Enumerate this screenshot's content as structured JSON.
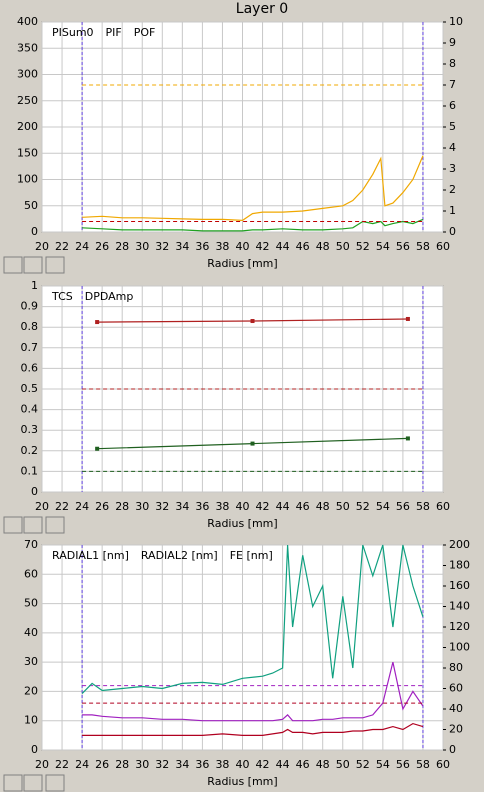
{
  "title": "Layer 0",
  "chart_data": [
    {
      "type": "line",
      "xlabel": "Radius [mm]",
      "xlim": [
        20,
        60
      ],
      "xticks": [
        20,
        22,
        24,
        26,
        28,
        30,
        32,
        34,
        36,
        38,
        40,
        42,
        44,
        46,
        48,
        50,
        52,
        54,
        56,
        58,
        60
      ],
      "ylim": [
        0,
        400
      ],
      "yticks": [
        0,
        50,
        100,
        150,
        200,
        250,
        300,
        350,
        400
      ],
      "y2lim": [
        0,
        10
      ],
      "y2ticks": [
        0,
        1,
        2,
        3,
        4,
        5,
        6,
        7,
        8,
        9,
        10
      ],
      "vlines": [
        24,
        58
      ],
      "grid": true,
      "x": [
        24,
        26,
        28,
        30,
        32,
        34,
        36,
        38,
        40,
        41,
        42,
        44,
        46,
        48,
        50,
        51,
        52,
        53,
        53.8,
        54.2,
        55,
        56,
        57,
        58
      ],
      "series": [
        {
          "name": "PISum0",
          "color": "#f0a800",
          "limit": 280,
          "values": [
            28,
            30,
            27,
            27,
            26,
            25,
            24,
            24,
            22,
            35,
            38,
            38,
            40,
            45,
            50,
            60,
            80,
            110,
            140,
            50,
            55,
            75,
            100,
            145
          ]
        },
        {
          "name": "PIF",
          "color": "#20a020",
          "axis": "y2",
          "values": [
            0.2,
            0.15,
            0.1,
            0.1,
            0.1,
            0.1,
            0.05,
            0.05,
            0.05,
            0.1,
            0.1,
            0.15,
            0.1,
            0.1,
            0.15,
            0.2,
            0.5,
            0.4,
            0.5,
            0.3,
            0.4,
            0.5,
            0.4,
            0.6
          ]
        },
        {
          "name": "POF",
          "color": "#c00000",
          "axis": "y2",
          "limit": 0.5
        }
      ]
    },
    {
      "type": "line",
      "xlabel": "Radius [mm]",
      "xlim": [
        20,
        60
      ],
      "xticks": [
        20,
        22,
        24,
        26,
        28,
        30,
        32,
        34,
        36,
        38,
        40,
        42,
        44,
        46,
        48,
        50,
        52,
        54,
        56,
        58,
        60
      ],
      "ylim": [
        0,
        1
      ],
      "yticks": [
        0,
        0.1,
        0.2,
        0.3,
        0.4,
        0.5,
        0.6,
        0.7,
        0.8,
        0.9,
        1
      ],
      "vlines": [
        24,
        58
      ],
      "grid": true,
      "x": [
        25.5,
        41,
        56.5
      ],
      "series": [
        {
          "name": "TCS",
          "color": "#206020",
          "limit": 0.1,
          "marker": true,
          "values": [
            0.21,
            0.235,
            0.26
          ]
        },
        {
          "name": "DPDAmp",
          "color": "#b02020",
          "limit": 0.5,
          "marker": true,
          "values": [
            0.825,
            0.83,
            0.84
          ]
        }
      ]
    },
    {
      "type": "line",
      "xlabel": "Radius [mm]",
      "xlim": [
        20,
        60
      ],
      "xticks": [
        20,
        22,
        24,
        26,
        28,
        30,
        32,
        34,
        36,
        38,
        40,
        42,
        44,
        46,
        48,
        50,
        52,
        54,
        56,
        58,
        60
      ],
      "ylim": [
        0,
        70
      ],
      "yticks": [
        0,
        10,
        20,
        30,
        40,
        50,
        60,
        70
      ],
      "y2lim": [
        0,
        200
      ],
      "y2ticks": [
        0,
        20,
        40,
        60,
        80,
        100,
        120,
        140,
        160,
        180,
        200
      ],
      "vlines": [
        24,
        58
      ],
      "grid": true,
      "x": [
        24,
        25,
        26,
        28,
        30,
        32,
        34,
        36,
        38,
        40,
        42,
        43,
        44,
        44.5,
        45,
        46,
        47,
        48,
        49,
        50,
        51,
        52,
        53,
        54,
        55,
        56,
        57,
        58
      ],
      "series": [
        {
          "name": "RADIAL1 [nm]",
          "color": "#a020c0",
          "limit": 22,
          "values": [
            12,
            12,
            11.5,
            11,
            11,
            10.5,
            10.5,
            10,
            10,
            10,
            10,
            10,
            10.5,
            12,
            10,
            10,
            10,
            10.5,
            10.5,
            11,
            11,
            11,
            12,
            16,
            30,
            14,
            20,
            15
          ]
        },
        {
          "name": "RADIAL2 [nm]",
          "color": "#b00020",
          "limit": 16,
          "values": [
            5,
            5,
            5,
            5,
            5,
            5,
            5,
            5,
            5.5,
            5,
            5,
            5.5,
            6,
            7,
            6,
            6,
            5.5,
            6,
            6,
            6,
            6.5,
            6.5,
            7,
            7,
            8,
            7,
            9,
            8
          ]
        },
        {
          "name": "FE [nm]",
          "color": "#10a080",
          "axis": "y2",
          "values": [
            55,
            65,
            58,
            60,
            62,
            60,
            65,
            66,
            64,
            70,
            72,
            75,
            80,
            200,
            120,
            190,
            140,
            160,
            70,
            150,
            80,
            200,
            170,
            200,
            120,
            200,
            160,
            130
          ]
        }
      ]
    }
  ]
}
